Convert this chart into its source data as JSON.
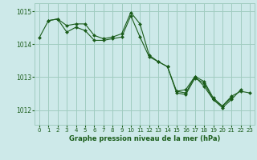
{
  "bg_color": "#cde9e9",
  "grid_color": "#a0ccc0",
  "line_color": "#1a5c1a",
  "marker_color": "#1a5c1a",
  "title": "Graphe pression niveau de la mer (hPa)",
  "xlim": [
    -0.5,
    23.5
  ],
  "ylim": [
    1011.55,
    1015.25
  ],
  "xticks": [
    0,
    1,
    2,
    3,
    4,
    5,
    6,
    7,
    8,
    9,
    10,
    11,
    12,
    13,
    14,
    15,
    16,
    17,
    18,
    19,
    20,
    21,
    22,
    23
  ],
  "yticks": [
    1012,
    1013,
    1014,
    1015
  ],
  "series": [
    {
      "x": [
        0,
        1,
        2,
        3,
        4,
        5,
        6,
        7,
        8,
        9,
        10,
        11,
        12,
        13,
        14,
        15,
        16,
        17,
        18,
        19,
        20,
        21
      ],
      "y": [
        1014.2,
        1014.72,
        1014.77,
        1014.57,
        1014.62,
        1014.62,
        1014.27,
        1014.17,
        1014.22,
        1014.32,
        1014.97,
        1014.62,
        1013.67,
        1013.47,
        1013.32,
        1012.57,
        1012.52,
        1013.02,
        1012.87,
        1012.37,
        1012.12,
        1012.37
      ]
    },
    {
      "x": [
        1,
        2,
        3,
        4,
        5,
        6,
        7,
        8,
        9,
        10,
        11,
        12,
        13,
        14,
        15,
        16,
        17,
        18,
        19,
        20,
        21,
        22
      ],
      "y": [
        1014.72,
        1014.77,
        1014.37,
        1014.52,
        1014.42,
        1014.12,
        1014.12,
        1014.17,
        1014.22,
        1014.87,
        1014.22,
        1013.62,
        1013.47,
        1013.32,
        1012.52,
        1012.47,
        1012.97,
        1012.82,
        1012.32,
        1012.07,
        1012.32,
        1012.62
      ]
    },
    {
      "x": [
        15,
        16,
        17,
        18,
        19,
        20,
        21,
        22,
        23
      ],
      "y": [
        1012.57,
        1012.62,
        1013.02,
        1012.72,
        1012.32,
        1012.12,
        1012.42,
        1012.57,
        1012.52
      ]
    }
  ]
}
